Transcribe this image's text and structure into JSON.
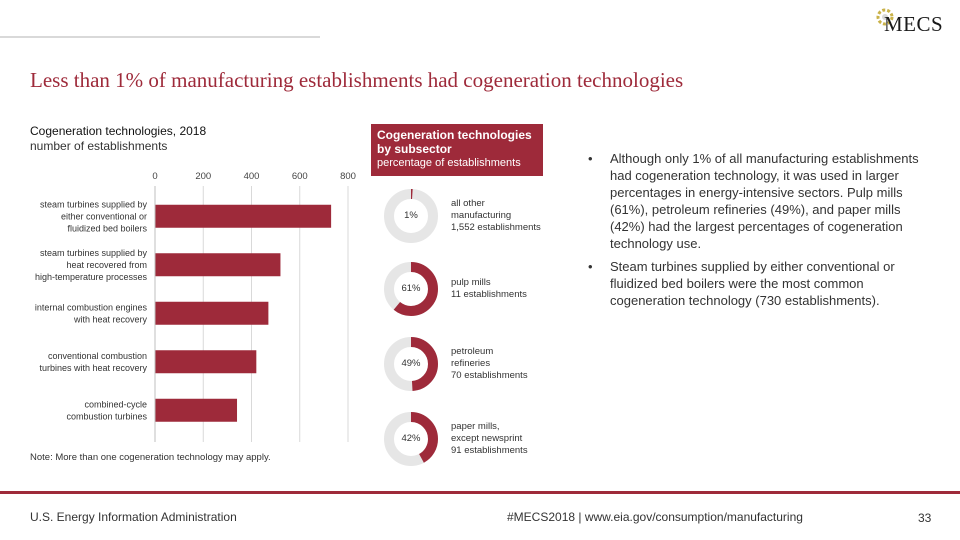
{
  "logo": {
    "text": "MECS"
  },
  "title": "Less than 1% of manufacturing establishments had cogeneration technologies",
  "bar_chart": {
    "title": "Cogeneration technologies, 2018",
    "subtitle": "number of establishments",
    "note": "Note: More than one cogeneration technology may apply."
  },
  "chart_data": [
    {
      "type": "bar",
      "orientation": "horizontal",
      "title": "Cogeneration technologies, 2018",
      "subtitle": "number of establishments",
      "categories": [
        "steam turbines supplied by either conventional or fluidized bed boilers",
        "steam turbines supplied by heat recovered from high-temperature processes",
        "internal combustion engines with heat recovery",
        "conventional combustion turbines with heat recovery",
        "combined-cycle combustion turbines"
      ],
      "category_lines": [
        [
          "steam turbines supplied by",
          "either conventional or",
          "fluidized bed boilers"
        ],
        [
          "steam turbines supplied by",
          "heat recovered from",
          "high-temperature processes"
        ],
        [
          "internal combustion engines",
          "with heat recovery"
        ],
        [
          "conventional combustion",
          "turbines with heat recovery"
        ],
        [
          "combined-cycle",
          "combustion turbines"
        ]
      ],
      "values": [
        730,
        520,
        470,
        420,
        340
      ],
      "xlim": [
        0,
        800
      ],
      "x_ticks": [
        0,
        200,
        400,
        600,
        800
      ],
      "grid": true,
      "color": "#9e2a3a"
    },
    {
      "type": "pie",
      "variant": "donut",
      "title": "Cogeneration technologies by subsector",
      "subtitle": "percentage of establishments",
      "items": [
        {
          "percent": 1,
          "percent_label": "1%",
          "lines": [
            "all other",
            "manufacturing",
            "1,552 establishments"
          ]
        },
        {
          "percent": 61,
          "percent_label": "61%",
          "lines": [
            "pulp mills",
            "11 establishments"
          ]
        },
        {
          "percent": 49,
          "percent_label": "49%",
          "lines": [
            "petroleum",
            "refineries",
            "70 establishments"
          ]
        },
        {
          "percent": 42,
          "percent_label": "42%",
          "lines": [
            "paper mills,",
            "except newsprint",
            "91 establishments"
          ]
        }
      ],
      "fill_color": "#9e2a3a",
      "track_color": "#e6e6e6"
    }
  ],
  "donut_header": {
    "title_line1": "Cogeneration technologies",
    "title_line2": "by subsector",
    "subtitle": "percentage of establishments"
  },
  "bullets": [
    {
      "marker": "•",
      "text": "Although only 1% of all manufacturing establishments had cogeneration technology, it was used in larger percentages in energy-intensive sectors. Pulp mills (61%), petroleum refineries (49%), and paper mills (42%) had the largest percentages of cogeneration technology use."
    },
    {
      "marker": "•",
      "text": "Steam turbines supplied by either conventional or fluidized bed boilers were the most common cogeneration technology (730 establishments)."
    }
  ],
  "footer": {
    "source": "U.S. Energy Information Administration",
    "hashtag": "#MECS2018 | www.eia.gov/consumption/manufacturing",
    "page_number": "33"
  },
  "colors": {
    "accent": "#9e2a3a",
    "grid": "#d9d9d9",
    "track": "#e6e6e6"
  }
}
